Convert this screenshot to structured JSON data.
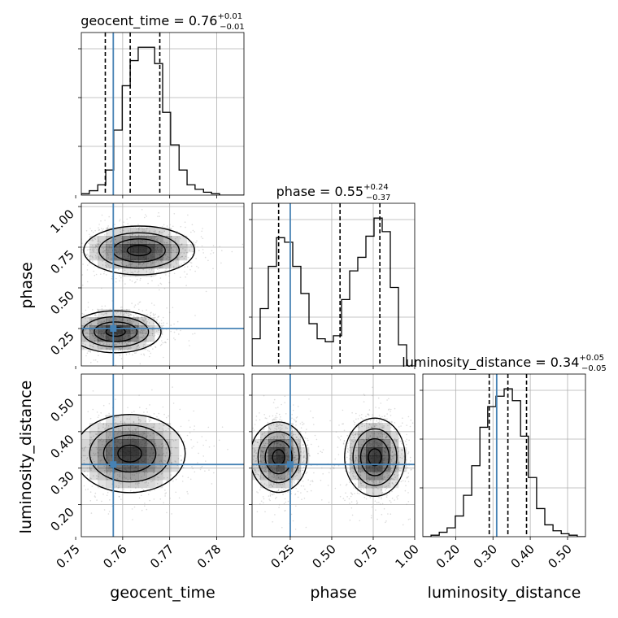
{
  "figure": {
    "type": "corner",
    "parameters": [
      "geocent_time",
      "phase",
      "luminosity_distance"
    ]
  },
  "colors": {
    "truth": "#4682b4",
    "histogram": "#000000",
    "grid": "#b0b0b0",
    "density": "#000000"
  },
  "titles": [
    {
      "name": "geocent_time",
      "median": "0.76",
      "plus": "+0.01",
      "minus": "−0.01"
    },
    {
      "name": "phase",
      "median": "0.55",
      "plus": "+0.24",
      "minus": "−0.37"
    },
    {
      "name": "luminosity_distance",
      "median": "0.34",
      "plus": "+0.05",
      "minus": "−0.05"
    }
  ],
  "axis_labels": {
    "bottom": [
      "geocent_time",
      "phase",
      "luminosity_distance"
    ],
    "left": [
      "phase",
      "luminosity_distance"
    ]
  },
  "chart_data": [
    {
      "type": "histogram",
      "panel": "geocent_time 1D marginal",
      "x_range": [
        0.7512,
        0.7858
      ],
      "xticks": [
        0.75,
        0.76,
        0.77,
        0.78
      ],
      "bins": {
        "edges": [
          0.7512,
          0.7529,
          0.7547,
          0.7564,
          0.7581,
          0.7599,
          0.7616,
          0.7633,
          0.7651,
          0.7668,
          0.7685,
          0.7702,
          0.772,
          0.7737,
          0.7754,
          0.7772,
          0.7789,
          0.7806,
          0.7823,
          0.7841,
          0.7858
        ],
        "counts": [
          0.01,
          0.03,
          0.07,
          0.17,
          0.44,
          0.74,
          0.91,
          1.0,
          1.0,
          0.89,
          0.56,
          0.34,
          0.17,
          0.07,
          0.04,
          0.02,
          0.01,
          0.0,
          0.0,
          0.0
        ]
      },
      "quantiles": [
        0.7563,
        0.7616,
        0.7679
      ],
      "truth": 0.758,
      "grid": true
    },
    {
      "type": "histogram",
      "panel": "phase 1D marginal",
      "x_range": [
        0.02,
        1.0
      ],
      "xticks": [
        0.25,
        0.5,
        0.75,
        1.0
      ],
      "bins": {
        "edges": [
          0.02,
          0.069,
          0.118,
          0.167,
          0.216,
          0.265,
          0.314,
          0.363,
          0.412,
          0.461,
          0.51,
          0.559,
          0.608,
          0.657,
          0.706,
          0.755,
          0.804,
          0.853,
          0.902,
          0.951,
          1.0
        ],
        "counts": [
          0.18,
          0.38,
          0.66,
          0.85,
          0.82,
          0.66,
          0.48,
          0.28,
          0.18,
          0.16,
          0.2,
          0.44,
          0.63,
          0.72,
          0.86,
          0.98,
          0.89,
          0.52,
          0.14,
          0.0
        ]
      },
      "quantiles": [
        0.18,
        0.55,
        0.79
      ],
      "truth": 0.25,
      "grid": true
    },
    {
      "type": "histogram",
      "panel": "luminosity_distance 1D marginal",
      "x_range": [
        0.112,
        0.548
      ],
      "xticks": [
        0.2,
        0.3,
        0.4,
        0.5
      ],
      "bins": {
        "edges": [
          0.112,
          0.134,
          0.156,
          0.177,
          0.199,
          0.221,
          0.243,
          0.265,
          0.286,
          0.308,
          0.33,
          0.352,
          0.374,
          0.395,
          0.417,
          0.439,
          0.461,
          0.483,
          0.504,
          0.526,
          0.548
        ],
        "counts": [
          0.0,
          0.01,
          0.03,
          0.06,
          0.14,
          0.28,
          0.48,
          0.74,
          0.88,
          0.95,
          1.0,
          0.92,
          0.68,
          0.4,
          0.19,
          0.08,
          0.04,
          0.02,
          0.01,
          0.0
        ]
      },
      "quantiles": [
        0.29,
        0.34,
        0.39
      ],
      "truth": 0.31,
      "grid": true
    },
    {
      "type": "heatmap",
      "panel": "phase vs geocent_time 2D contours",
      "x_range": [
        0.7512,
        0.7858
      ],
      "y_range": [
        0.02,
        1.02
      ],
      "xticks": [
        0.75,
        0.76,
        0.77,
        0.78
      ],
      "yticks": [
        0.25,
        0.5,
        0.75,
        1.0
      ],
      "modes": [
        {
          "x": 0.7585,
          "y": 0.23,
          "sx": 0.0045,
          "sy": 0.06,
          "w": 1.0
        },
        {
          "x": 0.7635,
          "y": 0.73,
          "sx": 0.0055,
          "sy": 0.07,
          "w": 1.0
        }
      ],
      "truth": [
        0.758,
        0.25
      ],
      "grid": true
    },
    {
      "type": "heatmap",
      "panel": "luminosity_distance vs geocent_time 2D contours",
      "x_range": [
        0.7512,
        0.7858
      ],
      "y_range": [
        0.112,
        0.558
      ],
      "xticks": [
        0.75,
        0.76,
        0.77,
        0.78
      ],
      "yticks": [
        0.2,
        0.3,
        0.4,
        0.5
      ],
      "modes": [
        {
          "x": 0.7615,
          "y": 0.34,
          "sx": 0.0055,
          "sy": 0.05,
          "w": 1.0
        }
      ],
      "truth": [
        0.758,
        0.31
      ],
      "grid": true
    },
    {
      "type": "heatmap",
      "panel": "luminosity_distance vs phase 2D contours",
      "x_range": [
        0.02,
        1.0
      ],
      "y_range": [
        0.112,
        0.558
      ],
      "xticks": [
        0.25,
        0.5,
        0.75,
        1.0
      ],
      "yticks": [
        0.2,
        0.3,
        0.4,
        0.5
      ],
      "modes": [
        {
          "x": 0.18,
          "y": 0.33,
          "sx": 0.08,
          "sy": 0.045,
          "w": 1.0
        },
        {
          "x": 0.76,
          "y": 0.33,
          "sx": 0.085,
          "sy": 0.05,
          "w": 1.0
        }
      ],
      "truth": [
        0.25,
        0.31
      ],
      "grid": true
    }
  ]
}
